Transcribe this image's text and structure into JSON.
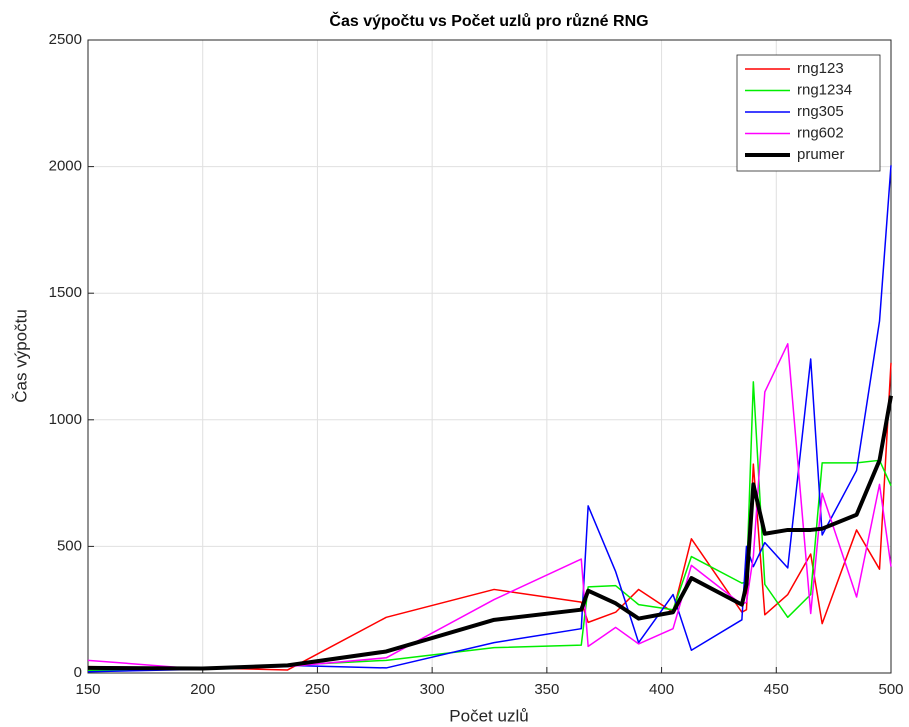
{
  "chart_data": {
    "type": "line",
    "title": "Čas výpočtu vs Počet uzlů pro různé RNG",
    "x_label": "Počet uzlů",
    "y_label": "Čas výpočtu",
    "x": [
      150,
      200,
      237,
      280,
      327,
      365,
      368,
      380,
      390,
      405,
      413,
      435,
      437,
      440,
      445,
      455,
      465,
      470,
      485,
      495,
      500
    ],
    "series": [
      {
        "name": "rng123",
        "color": "#ff0000",
        "width": 1.5,
        "values": [
          25,
          20,
          12,
          220,
          330,
          280,
          200,
          240,
          330,
          240,
          530,
          240,
          250,
          825,
          230,
          310,
          470,
          195,
          565,
          410,
          1225
        ]
      },
      {
        "name": "rng1234",
        "color": "#00ee00",
        "width": 1.5,
        "values": [
          10,
          15,
          30,
          50,
          100,
          110,
          340,
          345,
          270,
          250,
          460,
          355,
          360,
          1150,
          350,
          220,
          310,
          830,
          830,
          840,
          740
        ]
      },
      {
        "name": "rng305",
        "color": "#0000ff",
        "width": 1.5,
        "values": [
          5,
          15,
          30,
          20,
          120,
          175,
          660,
          400,
          120,
          310,
          90,
          210,
          500,
          420,
          515,
          415,
          1240,
          545,
          800,
          1390,
          2005
        ]
      },
      {
        "name": "rng602",
        "color": "#ff00ff",
        "width": 1.5,
        "values": [
          50,
          15,
          25,
          60,
          290,
          450,
          105,
          180,
          115,
          175,
          425,
          270,
          280,
          460,
          1110,
          1300,
          235,
          710,
          300,
          745,
          420
        ]
      },
      {
        "name": "prumer",
        "color": "#000000",
        "width": 4,
        "values": [
          20,
          18,
          30,
          85,
          210,
          250,
          325,
          275,
          215,
          240,
          375,
          270,
          350,
          745,
          550,
          565,
          565,
          570,
          625,
          840,
          1095
        ]
      }
    ],
    "xlim": [
      150,
      500
    ],
    "xticks": [
      150,
      200,
      250,
      300,
      350,
      400,
      450,
      500
    ],
    "ylim": [
      0,
      2500
    ],
    "yticks": [
      0,
      500,
      1000,
      1500,
      2000,
      2500
    ],
    "grid": true,
    "legend": "top-right"
  }
}
